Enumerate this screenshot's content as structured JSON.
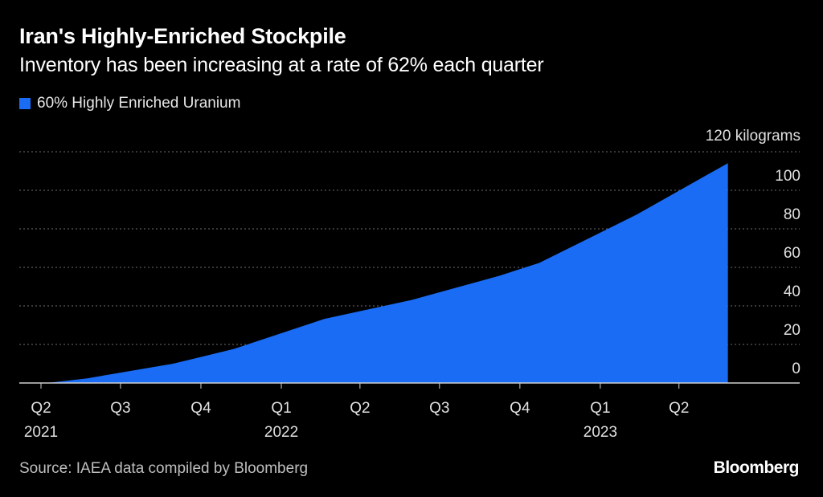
{
  "header": {
    "title": "Iran's Highly-Enriched Stockpile",
    "subtitle": "Inventory has been increasing at a rate of 62% each quarter"
  },
  "legend": {
    "label": "60% Highly Enriched Uranium",
    "color": "#1a6cf5"
  },
  "footer": {
    "source": "Source: IAEA data compiled by Bloomberg",
    "brand": "Bloomberg"
  },
  "chart_data": {
    "type": "area",
    "x": [
      "2021-04-10",
      "2021-05-24",
      "2021-08-30",
      "2021-11-08",
      "2022-02-19",
      "2022-05-30",
      "2022-09-07",
      "2022-10-23",
      "2023-02-12",
      "2023-05-27"
    ],
    "series": [
      {
        "name": "60% Highly Enriched Uranium",
        "values": [
          0.1,
          2.4,
          10,
          17.7,
          33.2,
          43.1,
          55.6,
          62.3,
          87.5,
          114.1
        ]
      }
    ],
    "ylim": [
      0,
      120
    ],
    "yticks": [
      "0",
      "20",
      "40",
      "60",
      "80",
      "100"
    ],
    "y_unit_label": "120 kilograms",
    "x_tick_labels": [
      {
        "quarter": "Q2",
        "year": "2021",
        "date": "2021-04-01"
      },
      {
        "quarter": "Q3",
        "year": "",
        "date": "2021-07-01"
      },
      {
        "quarter": "Q4",
        "year": "",
        "date": "2021-10-01"
      },
      {
        "quarter": "Q1",
        "year": "2022",
        "date": "2022-01-01"
      },
      {
        "quarter": "Q2",
        "year": "",
        "date": "2022-04-01"
      },
      {
        "quarter": "Q3",
        "year": "",
        "date": "2022-07-01"
      },
      {
        "quarter": "Q4",
        "year": "",
        "date": "2022-10-01"
      },
      {
        "quarter": "Q1",
        "year": "2023",
        "date": "2023-01-01"
      },
      {
        "quarter": "Q2",
        "year": "",
        "date": "2023-04-01"
      }
    ],
    "grid": true,
    "colors": {
      "area": "#1a6cf5",
      "grid": "#6e6e6e",
      "axis": "#d0d0d0",
      "tick_text": "#e0e0e0"
    }
  }
}
